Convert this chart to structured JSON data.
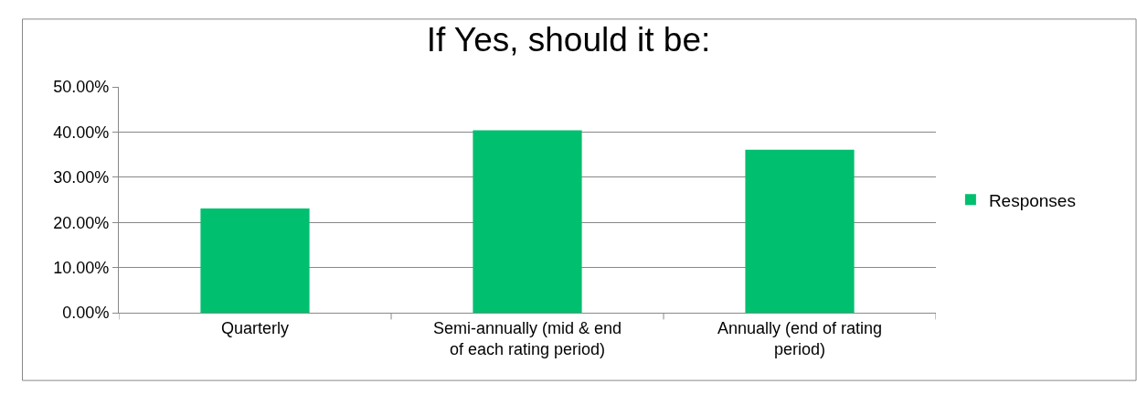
{
  "chart_data": {
    "type": "bar",
    "title": "If Yes, should it be:",
    "categories": [
      "Quarterly",
      "Semi-annually (mid & end of each rating period)",
      "Annually (end of rating period)"
    ],
    "series": [
      {
        "name": "Responses",
        "color": "#00bf6f",
        "values": [
          23.1,
          40.4,
          36.1
        ]
      }
    ],
    "ylim": [
      0,
      50
    ],
    "yticks": [
      {
        "value": 0,
        "label": "0.00%"
      },
      {
        "value": 10,
        "label": "10.00%"
      },
      {
        "value": 20,
        "label": "20.00%"
      },
      {
        "value": 30,
        "label": "30.00%"
      },
      {
        "value": 40,
        "label": "40.00%"
      },
      {
        "value": 50,
        "label": "50.00%"
      }
    ],
    "grid": "y",
    "legend": "right"
  }
}
